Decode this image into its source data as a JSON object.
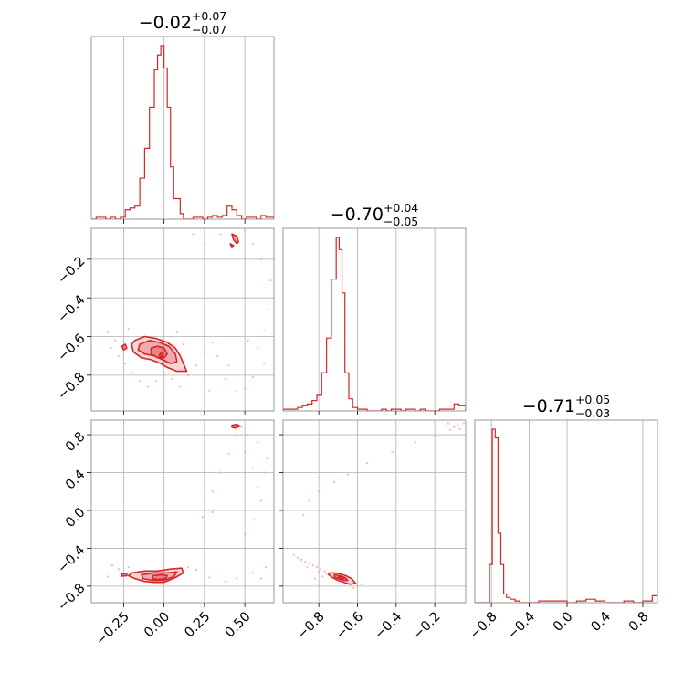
{
  "chart_data": {
    "type": "corner",
    "color": "#d62728",
    "grid": true,
    "parameters": [
      {
        "median": "−0.02",
        "plus": "+0.07",
        "minus": "−0.07",
        "range": [
          -0.45,
          0.68
        ],
        "ticks": [
          -0.25,
          0.0,
          0.25,
          0.5
        ],
        "tick_labels": [
          "−0.25",
          "0.00",
          "0.25",
          "0.50"
        ]
      },
      {
        "median": "−0.70",
        "plus": "+0.04",
        "minus": "−0.05",
        "range": [
          -0.985,
          -0.04
        ],
        "ticks": [
          -0.8,
          -0.6,
          -0.4,
          -0.2
        ],
        "tick_labels": [
          "−0.8",
          "−0.6",
          "−0.4",
          "−0.2"
        ]
      },
      {
        "median": "−0.71",
        "plus": "+0.05",
        "minus": "−0.03",
        "range": [
          -0.975,
          0.955
        ],
        "ticks": [
          -0.8,
          -0.4,
          0.0,
          0.4,
          0.8
        ],
        "tick_labels": [
          "−0.8",
          "−0.4",
          "0.0",
          "0.4",
          "0.8"
        ]
      }
    ],
    "histograms": [
      {
        "edges": [
          -0.45,
          -0.42,
          -0.39,
          -0.36,
          -0.33,
          -0.3,
          -0.27,
          -0.24,
          -0.21,
          -0.18,
          -0.15,
          -0.12,
          -0.09,
          -0.06,
          -0.04,
          -0.02,
          0.0,
          0.02,
          0.04,
          0.06,
          0.08,
          0.1,
          0.12,
          0.15,
          0.18,
          0.21,
          0.24,
          0.27,
          0.3,
          0.33,
          0.36,
          0.39,
          0.42,
          0.45,
          0.48,
          0.51,
          0.54,
          0.57,
          0.6,
          0.63,
          0.68
        ],
        "counts": [
          0,
          1,
          1,
          0,
          1,
          0,
          1,
          5,
          6,
          7,
          22,
          38,
          60,
          80,
          88,
          93,
          81,
          60,
          28,
          11,
          11,
          3,
          0,
          0,
          1,
          1,
          0,
          1,
          2,
          1,
          2,
          7,
          5,
          2,
          0,
          1,
          1,
          0,
          2,
          1
        ]
      },
      {
        "edges": [
          -0.985,
          -0.96,
          -0.935,
          -0.91,
          -0.885,
          -0.86,
          -0.835,
          -0.81,
          -0.785,
          -0.76,
          -0.735,
          -0.71,
          -0.695,
          -0.68,
          -0.665,
          -0.645,
          -0.625,
          -0.6,
          -0.575,
          -0.55,
          -0.525,
          -0.5,
          -0.475,
          -0.45,
          -0.425,
          -0.4,
          -0.375,
          -0.35,
          -0.325,
          -0.3,
          -0.275,
          -0.25,
          -0.225,
          -0.2,
          -0.175,
          -0.15,
          -0.125,
          -0.1,
          -0.075,
          -0.04
        ],
        "counts": [
          1,
          1,
          1,
          2,
          3,
          4,
          6,
          9,
          22,
          42,
          76,
          100,
          93,
          68,
          22,
          7,
          2,
          1,
          1,
          0,
          0,
          0,
          1,
          0,
          1,
          1,
          0,
          1,
          1,
          0,
          1,
          0,
          0,
          0,
          1,
          1,
          1,
          4,
          3
        ]
      },
      {
        "edges": [
          -0.975,
          -0.93,
          -0.87,
          -0.82,
          -0.79,
          -0.76,
          -0.73,
          -0.7,
          -0.67,
          -0.64,
          -0.6,
          -0.55,
          -0.5,
          -0.4,
          -0.3,
          -0.2,
          -0.1,
          0.0,
          0.1,
          0.2,
          0.3,
          0.4,
          0.5,
          0.6,
          0.7,
          0.8,
          0.85,
          0.9,
          0.955
        ],
        "counts": [
          0,
          0,
          0,
          22,
          100,
          95,
          40,
          22,
          5,
          3,
          2,
          1,
          0,
          0,
          1,
          1,
          1,
          0,
          1,
          2,
          1,
          0,
          0,
          1,
          0,
          1,
          1,
          4
        ]
      }
    ],
    "pairs": [
      {
        "x_param": 0,
        "y_param": 1,
        "contours": [
          [
            [
              -0.18,
              -0.62
            ],
            [
              -0.12,
              -0.6
            ],
            [
              -0.05,
              -0.61
            ],
            [
              0.02,
              -0.63
            ],
            [
              0.07,
              -0.66
            ],
            [
              0.1,
              -0.7
            ],
            [
              0.12,
              -0.74
            ],
            [
              0.14,
              -0.78
            ],
            [
              0.08,
              -0.78
            ],
            [
              0.02,
              -0.76
            ],
            [
              -0.02,
              -0.74
            ],
            [
              -0.08,
              -0.72
            ],
            [
              -0.14,
              -0.71
            ],
            [
              -0.19,
              -0.68
            ],
            [
              -0.2,
              -0.64
            ]
          ],
          [
            [
              -0.15,
              -0.64
            ],
            [
              -0.09,
              -0.62
            ],
            [
              -0.03,
              -0.63
            ],
            [
              0.03,
              -0.65
            ],
            [
              0.07,
              -0.69
            ],
            [
              0.08,
              -0.73
            ],
            [
              0.04,
              -0.74
            ],
            [
              -0.01,
              -0.72
            ],
            [
              -0.06,
              -0.7
            ],
            [
              -0.12,
              -0.69
            ],
            [
              -0.16,
              -0.67
            ]
          ],
          [
            [
              -0.08,
              -0.66
            ],
            [
              -0.04,
              -0.65
            ],
            [
              0.0,
              -0.66
            ],
            [
              0.02,
              -0.69
            ],
            [
              0.0,
              -0.71
            ],
            [
              -0.04,
              -0.71
            ],
            [
              -0.08,
              -0.69
            ]
          ],
          [
            [
              -0.025,
              -0.69
            ],
            [
              -0.015,
              -0.685
            ],
            [
              -0.01,
              -0.7
            ],
            [
              -0.02,
              -0.705
            ],
            [
              -0.03,
              -0.7
            ]
          ],
          [
            [
              -0.26,
              -0.65
            ],
            [
              -0.24,
              -0.64
            ],
            [
              -0.23,
              -0.66
            ],
            [
              -0.25,
              -0.67
            ]
          ],
          [
            [
              0.42,
              -0.07
            ],
            [
              0.45,
              -0.08
            ],
            [
              0.46,
              -0.11
            ],
            [
              0.45,
              -0.12
            ],
            [
              0.43,
              -0.1
            ]
          ],
          [
            [
              0.41,
              -0.12
            ],
            [
              0.43,
              -0.13
            ],
            [
              0.42,
              -0.14
            ]
          ]
        ],
        "scatter": [
          [
            -0.3,
            -0.62
          ],
          [
            -0.28,
            -0.7
          ],
          [
            -0.33,
            -0.66
          ],
          [
            -0.24,
            -0.74
          ],
          [
            -0.2,
            -0.79
          ],
          [
            -0.15,
            -0.83
          ],
          [
            -0.1,
            -0.86
          ],
          [
            0.05,
            -0.82
          ],
          [
            0.1,
            -0.86
          ],
          [
            0.15,
            -0.8
          ],
          [
            0.2,
            -0.75
          ],
          [
            0.25,
            -0.69
          ],
          [
            0.3,
            -0.63
          ],
          [
            0.33,
            -0.7
          ],
          [
            0.4,
            -0.75
          ],
          [
            0.45,
            -0.88
          ],
          [
            0.5,
            -0.87
          ],
          [
            0.55,
            -0.81
          ],
          [
            0.58,
            -0.66
          ],
          [
            0.62,
            -0.57
          ],
          [
            0.64,
            -0.46
          ],
          [
            0.66,
            -0.31
          ],
          [
            0.6,
            -0.2
          ],
          [
            0.55,
            -0.12
          ],
          [
            0.5,
            -0.05
          ],
          [
            0.35,
            -0.07
          ],
          [
            0.25,
            -0.12
          ],
          [
            0.18,
            -0.07
          ],
          [
            -0.22,
            -0.56
          ],
          [
            -0.35,
            -0.58
          ],
          [
            0.08,
            -0.58
          ],
          [
            0.12,
            -0.64
          ],
          [
            -0.05,
            -0.83
          ],
          [
            0.0,
            -0.8
          ],
          [
            0.28,
            -0.88
          ],
          [
            0.38,
            -0.82
          ],
          [
            0.62,
            -0.74
          ],
          [
            0.52,
            -0.62
          ]
        ]
      },
      {
        "x_param": 0,
        "y_param": 2,
        "contours": [
          [
            [
              -0.2,
              -0.66
            ],
            [
              -0.12,
              -0.64
            ],
            [
              -0.04,
              -0.64
            ],
            [
              0.04,
              -0.62
            ],
            [
              0.11,
              -0.61
            ],
            [
              0.12,
              -0.66
            ],
            [
              0.07,
              -0.71
            ],
            [
              0.0,
              -0.76
            ],
            [
              -0.06,
              -0.76
            ],
            [
              -0.12,
              -0.75
            ],
            [
              -0.18,
              -0.72
            ],
            [
              -0.22,
              -0.69
            ]
          ],
          [
            [
              -0.14,
              -0.68
            ],
            [
              -0.06,
              -0.66
            ],
            [
              0.02,
              -0.66
            ],
            [
              0.08,
              -0.65
            ],
            [
              0.06,
              -0.7
            ],
            [
              0.0,
              -0.74
            ],
            [
              -0.07,
              -0.74
            ],
            [
              -0.13,
              -0.72
            ]
          ],
          [
            [
              -0.07,
              -0.69
            ],
            [
              -0.02,
              -0.68
            ],
            [
              0.02,
              -0.69
            ],
            [
              0.01,
              -0.72
            ],
            [
              -0.04,
              -0.73
            ],
            [
              -0.07,
              -0.72
            ]
          ],
          [
            [
              -0.26,
              -0.67
            ],
            [
              -0.23,
              -0.665
            ],
            [
              -0.23,
              -0.69
            ],
            [
              -0.26,
              -0.695
            ]
          ],
          [
            [
              0.42,
              0.9
            ],
            [
              0.45,
              0.91
            ],
            [
              0.47,
              0.89
            ],
            [
              0.44,
              0.87
            ],
            [
              0.42,
              0.88
            ]
          ]
        ],
        "scatter": [
          [
            -0.32,
            -0.58
          ],
          [
            -0.35,
            -0.7
          ],
          [
            -0.28,
            -0.62
          ],
          [
            -0.22,
            -0.6
          ],
          [
            0.15,
            -0.6
          ],
          [
            0.2,
            -0.63
          ],
          [
            0.28,
            -0.71
          ],
          [
            0.32,
            -0.66
          ],
          [
            0.38,
            -0.75
          ],
          [
            0.45,
            -0.72
          ],
          [
            0.55,
            -0.66
          ],
          [
            0.6,
            -0.72
          ],
          [
            0.63,
            -0.6
          ],
          [
            0.24,
            -0.07
          ],
          [
            0.3,
            -0.02
          ],
          [
            0.3,
            0.2
          ],
          [
            0.35,
            0.4
          ],
          [
            0.4,
            0.6
          ],
          [
            0.45,
            0.78
          ],
          [
            0.5,
            0.62
          ],
          [
            0.55,
            0.45
          ],
          [
            0.58,
            0.25
          ],
          [
            0.6,
            0.1
          ],
          [
            0.62,
            0.4
          ],
          [
            0.64,
            0.55
          ],
          [
            0.56,
            -0.1
          ],
          [
            0.5,
            -0.25
          ],
          [
            0.48,
            0.88
          ],
          [
            0.52,
            0.8
          ],
          [
            0.58,
            0.72
          ]
        ]
      },
      {
        "x_param": 1,
        "y_param": 2,
        "contours": [
          [
            [
              -0.745,
              -0.66
            ],
            [
              -0.72,
              -0.66
            ],
            [
              -0.69,
              -0.67
            ],
            [
              -0.66,
              -0.69
            ],
            [
              -0.63,
              -0.72
            ],
            [
              -0.61,
              -0.77
            ],
            [
              -0.64,
              -0.78
            ],
            [
              -0.67,
              -0.76
            ],
            [
              -0.7,
              -0.74
            ],
            [
              -0.73,
              -0.71
            ],
            [
              -0.75,
              -0.68
            ]
          ],
          [
            [
              -0.72,
              -0.68
            ],
            [
              -0.69,
              -0.69
            ],
            [
              -0.665,
              -0.71
            ],
            [
              -0.65,
              -0.74
            ],
            [
              -0.67,
              -0.74
            ],
            [
              -0.7,
              -0.72
            ],
            [
              -0.72,
              -0.7
            ]
          ],
          [
            [
              -0.7,
              -0.7
            ],
            [
              -0.68,
              -0.705
            ],
            [
              -0.67,
              -0.72
            ],
            [
              -0.69,
              -0.72
            ]
          ]
        ],
        "scatter": [
          [
            -0.93,
            -0.47
          ],
          [
            -0.91,
            -0.5
          ],
          [
            -0.89,
            -0.52
          ],
          [
            -0.87,
            -0.54
          ],
          [
            -0.85,
            -0.56
          ],
          [
            -0.83,
            -0.58
          ],
          [
            -0.81,
            -0.6
          ],
          [
            -0.79,
            -0.62
          ],
          [
            -0.77,
            -0.64
          ],
          [
            -0.86,
            -0.6
          ],
          [
            -0.8,
            -0.65
          ],
          [
            -0.76,
            -0.67
          ],
          [
            -0.78,
            -0.7
          ],
          [
            -0.82,
            -0.72
          ],
          [
            -0.6,
            -0.8
          ],
          [
            -0.58,
            -0.78
          ],
          [
            -0.62,
            -0.82
          ],
          [
            -0.88,
            -0.05
          ],
          [
            -0.85,
            0.1
          ],
          [
            -0.8,
            0.2
          ],
          [
            -0.72,
            0.3
          ],
          [
            -0.65,
            0.38
          ],
          [
            -0.55,
            0.5
          ],
          [
            -0.42,
            0.62
          ],
          [
            -0.3,
            0.72
          ],
          [
            -0.2,
            0.78
          ],
          [
            -0.12,
            0.85
          ],
          [
            -0.08,
            0.9
          ],
          [
            -0.05,
            0.92
          ],
          [
            -0.1,
            0.88
          ],
          [
            -0.07,
            0.86
          ],
          [
            -0.13,
            0.92
          ]
        ]
      }
    ]
  }
}
